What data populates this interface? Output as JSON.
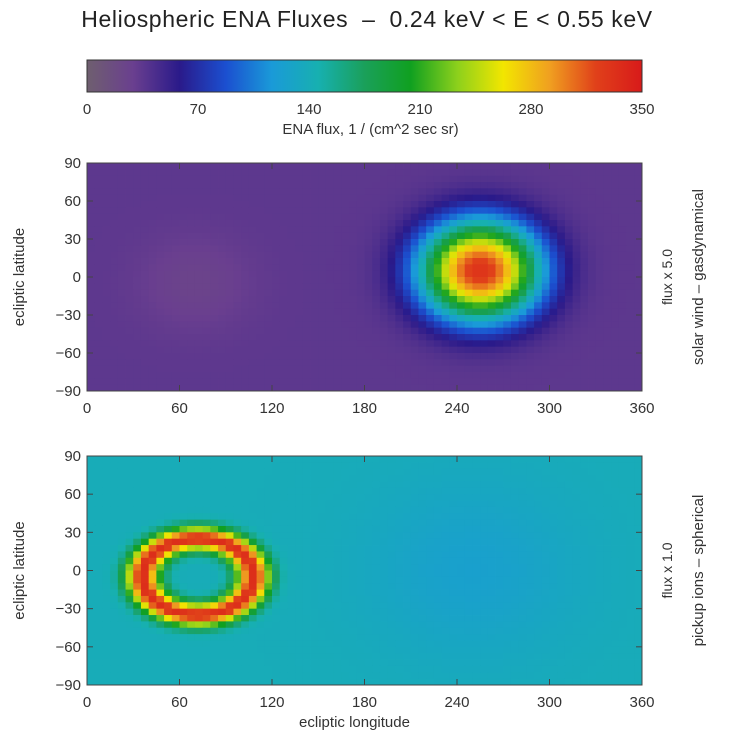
{
  "title": "Heliospheric ENA Fluxes  –  0.24 keV < E < 0.55 keV",
  "colorbar": {
    "label": "ENA flux,  1 / (cm^2 sec sr)",
    "range": [
      0,
      350
    ],
    "ticks": [
      "0",
      "70",
      "140",
      "210",
      "280",
      "350"
    ],
    "colormap": [
      "#6f5f6f",
      "#6a3f8f",
      "#2a1a8a",
      "#1b4fd0",
      "#1a9ad8",
      "#17b0b0",
      "#1aa05a",
      "#10a020",
      "#8cd01c",
      "#f2e600",
      "#f0a020",
      "#e0401a",
      "#d81a1a"
    ]
  },
  "chart_data": [
    {
      "type": "heatmap",
      "panel": "top",
      "xlim": [
        0,
        360
      ],
      "ylim": [
        -90,
        90
      ],
      "xticks": [
        "0",
        "60",
        "120",
        "180",
        "240",
        "300",
        "360"
      ],
      "yticks": [
        "90",
        "60",
        "30",
        "0",
        "−30",
        "−60",
        "−90"
      ],
      "ylabel": "ecliptic latitude",
      "xlabel": "",
      "side_label_1": "flux  x 5.0",
      "side_label_2": "solar wind – gasdynamical",
      "background": 35,
      "features": [
        {
          "kind": "spot",
          "lon": 255,
          "lat": 5,
          "peak": 330,
          "extent": 38
        },
        {
          "kind": "dip",
          "lon": 70,
          "lat": -5,
          "depth": 10,
          "extent": 35
        }
      ]
    },
    {
      "type": "heatmap",
      "panel": "bottom",
      "xlim": [
        0,
        360
      ],
      "ylim": [
        -90,
        90
      ],
      "xticks": [
        "0",
        "60",
        "120",
        "180",
        "240",
        "300",
        "360"
      ],
      "yticks": [
        "90",
        "60",
        "30",
        "0",
        "−30",
        "−60",
        "−90"
      ],
      "ylabel": "ecliptic latitude",
      "xlabel": "ecliptic longitude",
      "side_label_1": "flux  x 1.0",
      "side_label_2": "pickup ions – spherical",
      "background": 140,
      "features": [
        {
          "kind": "ring",
          "lon": 72,
          "lat": -5,
          "radius": 36,
          "peak": 335
        },
        {
          "kind": "floor",
          "lon": 250,
          "lat": 0,
          "value": 125,
          "extent": 70
        }
      ]
    }
  ]
}
